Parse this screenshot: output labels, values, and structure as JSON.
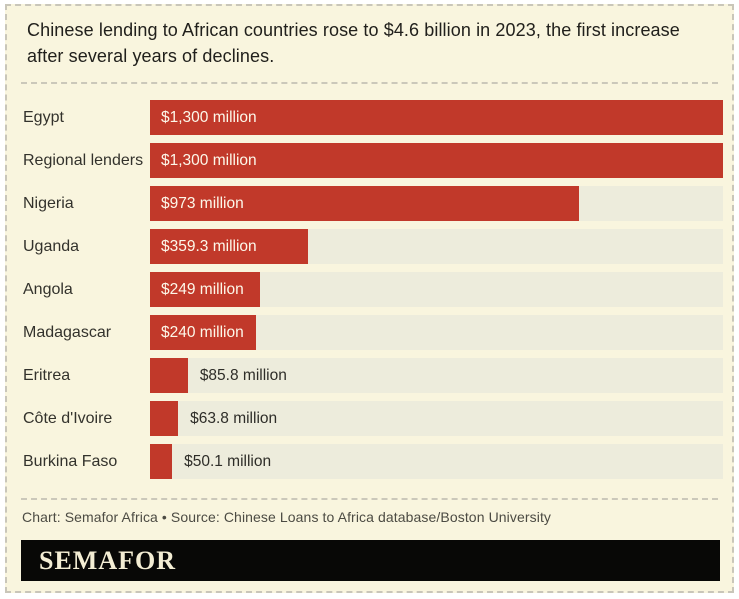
{
  "title": "Chinese lending to African countries rose to $4.6 billion in 2023, the first increase after several years of declines.",
  "chart_data": {
    "type": "bar",
    "orientation": "horizontal",
    "unit": "million USD",
    "x_max": 1300,
    "grid": false,
    "legend": false,
    "bar_color": "#c1392a",
    "track_color": "#edecdc",
    "categories": [
      "Egypt",
      "Regional lenders",
      "Nigeria",
      "Uganda",
      "Angola",
      "Madagascar",
      "Eritrea",
      "Côte d'Ivoire",
      "Burkina Faso"
    ],
    "values": [
      1300,
      1300,
      973,
      359.3,
      249,
      240,
      85.8,
      63.8,
      50.1
    ],
    "rows": [
      {
        "country": "Egypt",
        "value": 1300,
        "value_label": "$1,300 million",
        "label_position": "inside"
      },
      {
        "country": "Regional lenders",
        "value": 1300,
        "value_label": "$1,300 million",
        "label_position": "inside"
      },
      {
        "country": "Nigeria",
        "value": 973,
        "value_label": "$973 million",
        "label_position": "inside"
      },
      {
        "country": "Uganda",
        "value": 359.3,
        "value_label": "$359.3 million",
        "label_position": "inside"
      },
      {
        "country": "Angola",
        "value": 249,
        "value_label": "$249 million",
        "label_position": "inside"
      },
      {
        "country": "Madagascar",
        "value": 240,
        "value_label": "$240 million",
        "label_position": "inside"
      },
      {
        "country": "Eritrea",
        "value": 85.8,
        "value_label": "$85.8 million",
        "label_position": "outside"
      },
      {
        "country": "Côte d'Ivoire",
        "value": 63.8,
        "value_label": "$63.8 million",
        "label_position": "outside"
      },
      {
        "country": "Burkina Faso",
        "value": 50.1,
        "value_label": "$50.1 million",
        "label_position": "outside"
      }
    ]
  },
  "footer": {
    "credit": "Chart: Semafor Africa • Source: Chinese Loans to Africa database/Boston University",
    "logo": "SEMAFOR"
  },
  "colors": {
    "panel_background": "#f9f5de",
    "bar_red": "#c1392a",
    "bar_track": "#edecdc",
    "border_dash": "#c9c6b9",
    "title_text": "#21201c",
    "credit_text": "#4c4b43",
    "logo_bar": "#080806",
    "logo_text": "#f3edd3"
  }
}
